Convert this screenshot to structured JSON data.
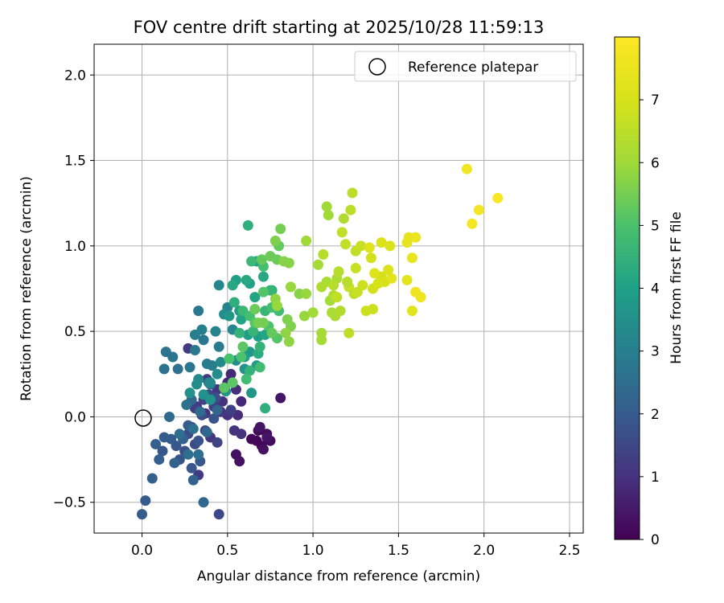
{
  "chart_data": {
    "type": "scatter",
    "title": "FOV centre drift starting at 2025/10/28 11:59:13",
    "xlabel": "Angular distance from reference (arcmin)",
    "ylabel": "Rotation from reference (arcmin)",
    "xlim": [
      -0.28,
      2.58
    ],
    "ylim": [
      -0.68,
      2.18
    ],
    "xticks": [
      0.0,
      0.5,
      1.0,
      1.5,
      2.0,
      2.5
    ],
    "xtick_labels": [
      "0.0",
      "0.5",
      "1.0",
      "1.5",
      "2.0",
      "2.5"
    ],
    "yticks": [
      -0.5,
      0.0,
      0.5,
      1.0,
      1.5,
      2.0
    ],
    "ytick_labels": [
      "−0.5",
      "0.0",
      "0.5",
      "1.0",
      "1.5",
      "2.0"
    ],
    "grid": true,
    "legend": {
      "placement": "top-right",
      "entries": [
        {
          "label": "Reference platepar",
          "marker": "open-circle"
        }
      ]
    },
    "reference_point": {
      "x": 0.0,
      "y": 0.0
    },
    "colorbar": {
      "label": "Hours from first FF file",
      "colormap": "viridis",
      "range": [
        0,
        8
      ],
      "ticks": [
        0,
        1,
        2,
        3,
        4,
        5,
        6,
        7
      ],
      "tick_labels": [
        "0",
        "1",
        "2",
        "3",
        "4",
        "5",
        "6",
        "7"
      ]
    },
    "points": [
      [
        0.64,
        -0.13,
        0.1
      ],
      [
        0.67,
        -0.14,
        0.1
      ],
      [
        0.7,
        -0.17,
        0.1
      ],
      [
        0.68,
        -0.08,
        0.2
      ],
      [
        0.73,
        -0.1,
        0.2
      ],
      [
        0.75,
        -0.14,
        0.2
      ],
      [
        0.55,
        -0.22,
        0.3
      ],
      [
        0.57,
        -0.26,
        0.3
      ],
      [
        0.71,
        -0.19,
        0.3
      ],
      [
        0.69,
        -0.06,
        0.4
      ],
      [
        0.73,
        -0.12,
        0.4
      ],
      [
        0.81,
        0.11,
        0.4
      ],
      [
        0.5,
        0.2,
        0.8
      ],
      [
        0.52,
        0.25,
        0.8
      ],
      [
        0.58,
        0.09,
        0.8
      ],
      [
        0.55,
        0.16,
        0.9
      ],
      [
        0.56,
        0.01,
        0.9
      ],
      [
        0.47,
        0.09,
        1.0
      ],
      [
        0.37,
        0.02,
        1.0
      ],
      [
        0.54,
        -0.08,
        1.0
      ],
      [
        0.5,
        0.01,
        1.0
      ],
      [
        0.58,
        -0.1,
        1.0
      ],
      [
        0.44,
        0.16,
        1.1
      ],
      [
        0.32,
        0.06,
        1.1
      ],
      [
        0.4,
        -0.12,
        1.1
      ],
      [
        0.46,
        0.03,
        1.1
      ],
      [
        0.27,
        0.4,
        1.2
      ],
      [
        0.33,
        -0.34,
        1.2
      ],
      [
        0.38,
        0.22,
        1.2
      ],
      [
        0.31,
        0.05,
        1.3
      ],
      [
        0.42,
        0.06,
        1.3
      ],
      [
        0.52,
        0.04,
        1.3
      ],
      [
        0.36,
        0.1,
        1.4
      ],
      [
        0.29,
        -0.06,
        1.4
      ],
      [
        0.44,
        -0.15,
        1.4
      ],
      [
        0.37,
        -0.08,
        1.5
      ],
      [
        0.45,
        -0.57,
        1.5
      ],
      [
        0.39,
        0.13,
        1.5
      ],
      [
        0.27,
        -0.1,
        1.6
      ],
      [
        0.31,
        -0.16,
        1.6
      ],
      [
        0.35,
        0.01,
        1.6
      ],
      [
        0.43,
        0.11,
        1.7
      ],
      [
        0.48,
        0.17,
        1.7
      ],
      [
        0.25,
        -0.2,
        1.7
      ],
      [
        0.33,
        -0.14,
        1.8
      ],
      [
        0.42,
        -0.01,
        1.8
      ],
      [
        0.22,
        -0.25,
        1.8
      ],
      [
        0.29,
        -0.3,
        1.9
      ],
      [
        0.34,
        -0.26,
        1.9
      ],
      [
        0.2,
        -0.17,
        1.9
      ],
      [
        0.12,
        -0.2,
        1.9
      ],
      [
        0.27,
        -0.05,
        2.0
      ],
      [
        0.17,
        -0.13,
        2.0
      ],
      [
        0.0,
        -0.57,
        2.0
      ],
      [
        0.02,
        -0.49,
        2.0
      ],
      [
        0.13,
        -0.12,
        2.0
      ],
      [
        0.08,
        -0.16,
        2.1
      ],
      [
        0.1,
        -0.25,
        2.1
      ],
      [
        0.06,
        -0.36,
        2.1
      ],
      [
        0.19,
        -0.27,
        2.2
      ],
      [
        0.24,
        -0.13,
        2.2
      ],
      [
        0.3,
        -0.37,
        2.2
      ],
      [
        0.36,
        -0.5,
        2.3
      ],
      [
        0.44,
        0.04,
        2.3
      ],
      [
        0.38,
        -0.09,
        2.3
      ],
      [
        0.16,
        0.0,
        2.4
      ],
      [
        0.29,
        0.1,
        2.4
      ],
      [
        0.34,
        0.03,
        2.4
      ],
      [
        0.4,
        0.19,
        2.5
      ],
      [
        0.22,
        -0.1,
        2.5
      ],
      [
        0.27,
        -0.22,
        2.5
      ],
      [
        0.33,
        -0.22,
        2.5
      ],
      [
        0.13,
        0.28,
        2.6
      ],
      [
        0.21,
        0.28,
        2.6
      ],
      [
        0.26,
        0.07,
        2.6
      ],
      [
        0.3,
        -0.07,
        2.6
      ],
      [
        0.14,
        0.38,
        2.7
      ],
      [
        0.18,
        0.35,
        2.7
      ],
      [
        0.28,
        0.29,
        2.7
      ],
      [
        0.31,
        0.39,
        2.8
      ],
      [
        0.36,
        0.45,
        2.8
      ],
      [
        0.33,
        0.62,
        2.8
      ],
      [
        0.38,
        0.31,
        2.9
      ],
      [
        0.45,
        0.41,
        2.9
      ],
      [
        0.39,
        0.2,
        2.9
      ],
      [
        0.35,
        0.51,
        3.0
      ],
      [
        0.41,
        0.3,
        3.0
      ],
      [
        0.31,
        0.48,
        3.0
      ],
      [
        0.43,
        0.5,
        3.1
      ],
      [
        0.5,
        0.64,
        3.1
      ],
      [
        0.53,
        0.51,
        3.2
      ],
      [
        0.45,
        0.77,
        3.2
      ],
      [
        0.4,
        0.2,
        3.3
      ],
      [
        0.46,
        0.32,
        3.3
      ],
      [
        0.33,
        0.22,
        3.3
      ],
      [
        0.32,
        0.19,
        3.4
      ],
      [
        0.44,
        0.25,
        3.4
      ],
      [
        0.48,
        0.6,
        3.4
      ],
      [
        0.55,
        0.33,
        3.5
      ],
      [
        0.49,
        0.15,
        3.5
      ],
      [
        0.28,
        0.14,
        3.5
      ],
      [
        0.36,
        0.13,
        3.6
      ],
      [
        0.4,
        0.1,
        3.6
      ],
      [
        0.6,
        0.28,
        3.6
      ],
      [
        0.64,
        0.14,
        3.7
      ],
      [
        0.51,
        0.59,
        3.7
      ],
      [
        0.63,
        0.38,
        3.7
      ],
      [
        0.57,
        0.62,
        3.8
      ],
      [
        0.67,
        0.3,
        3.8
      ],
      [
        0.62,
        0.48,
        3.9
      ],
      [
        0.6,
        0.35,
        3.9
      ],
      [
        0.68,
        0.47,
        3.9
      ],
      [
        0.55,
        0.8,
        4.0
      ],
      [
        0.63,
        0.78,
        4.0
      ],
      [
        0.67,
        0.91,
        4.0
      ],
      [
        0.66,
        0.7,
        4.1
      ],
      [
        0.72,
        0.48,
        4.1
      ],
      [
        0.58,
        0.57,
        4.1
      ],
      [
        0.53,
        0.77,
        4.2
      ],
      [
        0.61,
        0.8,
        4.2
      ],
      [
        0.71,
        0.82,
        4.2
      ],
      [
        0.76,
        0.74,
        4.3
      ],
      [
        0.68,
        0.37,
        4.3
      ],
      [
        0.72,
        0.05,
        4.4
      ],
      [
        0.62,
        1.12,
        4.4
      ],
      [
        0.54,
        0.67,
        4.4
      ],
      [
        0.63,
        0.27,
        4.5
      ],
      [
        0.57,
        0.49,
        4.5
      ],
      [
        0.69,
        0.41,
        4.5
      ],
      [
        0.65,
        0.5,
        4.6
      ],
      [
        0.72,
        0.62,
        4.6
      ],
      [
        0.75,
        0.74,
        4.6
      ],
      [
        0.64,
        0.91,
        4.7
      ],
      [
        0.59,
        0.62,
        4.7
      ],
      [
        0.69,
        0.29,
        4.8
      ],
      [
        0.61,
        0.22,
        4.8
      ],
      [
        0.8,
        0.62,
        4.8
      ],
      [
        0.71,
        0.88,
        4.9
      ],
      [
        0.63,
        0.59,
        4.9
      ],
      [
        0.76,
        0.64,
        4.9
      ],
      [
        0.58,
        0.35,
        5.0
      ],
      [
        0.51,
        0.34,
        5.0
      ],
      [
        0.74,
        0.53,
        5.0
      ],
      [
        0.66,
        0.55,
        5.1
      ],
      [
        0.71,
        0.73,
        5.1
      ],
      [
        0.79,
        0.46,
        5.1
      ],
      [
        0.59,
        0.41,
        5.2
      ],
      [
        0.48,
        0.17,
        5.2
      ],
      [
        0.53,
        0.2,
        5.2
      ],
      [
        0.7,
        0.92,
        5.3
      ],
      [
        0.76,
        0.49,
        5.3
      ],
      [
        0.8,
        1.0,
        5.3
      ],
      [
        0.66,
        0.63,
        5.4
      ],
      [
        0.79,
        0.92,
        5.4
      ],
      [
        0.75,
        0.94,
        5.4
      ],
      [
        0.68,
        0.55,
        5.5
      ],
      [
        0.71,
        0.55,
        5.5
      ],
      [
        0.81,
        1.1,
        5.5
      ],
      [
        0.85,
        0.57,
        5.6
      ],
      [
        0.87,
        0.53,
        5.6
      ],
      [
        0.78,
        1.03,
        5.6
      ],
      [
        0.86,
        0.9,
        5.7
      ],
      [
        0.83,
        0.91,
        5.7
      ],
      [
        0.92,
        0.72,
        5.7
      ],
      [
        0.78,
        0.69,
        5.8
      ],
      [
        0.84,
        0.49,
        5.8
      ],
      [
        0.86,
        0.44,
        5.8
      ],
      [
        0.79,
        0.65,
        5.9
      ],
      [
        0.87,
        0.76,
        5.9
      ],
      [
        0.95,
        0.59,
        5.9
      ],
      [
        1.08,
        1.23,
        6.0
      ],
      [
        1.09,
        1.18,
        6.0
      ],
      [
        1.0,
        0.61,
        6.0
      ],
      [
        1.05,
        0.49,
        6.1
      ],
      [
        1.03,
        0.89,
        6.1
      ],
      [
        1.1,
        0.68,
        6.1
      ],
      [
        1.08,
        0.79,
        6.2
      ],
      [
        1.14,
        0.81,
        6.2
      ],
      [
        1.13,
        0.59,
        6.2
      ],
      [
        1.05,
        0.76,
        6.3
      ],
      [
        1.12,
        0.71,
        6.3
      ],
      [
        1.18,
        1.16,
        6.3
      ],
      [
        1.06,
        0.95,
        6.4
      ],
      [
        1.12,
        0.77,
        6.4
      ],
      [
        1.15,
        0.85,
        6.4
      ],
      [
        1.21,
        0.49,
        6.5
      ],
      [
        1.22,
        1.21,
        6.5
      ],
      [
        1.23,
        1.31,
        6.5
      ],
      [
        1.17,
        1.08,
        6.6
      ],
      [
        1.25,
        0.97,
        6.6
      ],
      [
        1.14,
        0.7,
        6.6
      ],
      [
        1.21,
        0.76,
        6.7
      ],
      [
        1.28,
        1.0,
        6.7
      ],
      [
        1.25,
        0.87,
        6.7
      ],
      [
        1.31,
        0.62,
        6.8
      ],
      [
        1.35,
        0.63,
        6.8
      ],
      [
        1.29,
        0.77,
        6.8
      ],
      [
        1.35,
        0.75,
        6.9
      ],
      [
        1.4,
        0.82,
        6.9
      ],
      [
        1.34,
        0.93,
        6.9
      ],
      [
        0.96,
        0.72,
        5.9
      ],
      [
        0.96,
        1.03,
        6.0
      ],
      [
        1.05,
        0.45,
        6.1
      ],
      [
        1.11,
        0.61,
        6.2
      ],
      [
        1.16,
        0.62,
        6.3
      ],
      [
        1.2,
        0.79,
        6.4
      ],
      [
        1.24,
        0.72,
        6.5
      ],
      [
        1.19,
        1.01,
        6.6
      ],
      [
        1.26,
        0.73,
        6.7
      ],
      [
        1.38,
        0.78,
        7.0
      ],
      [
        1.42,
        0.79,
        7.0
      ],
      [
        1.44,
        0.86,
        7.1
      ],
      [
        1.4,
        1.02,
        7.1
      ],
      [
        1.45,
        1.0,
        7.1
      ],
      [
        1.36,
        0.84,
        7.2
      ],
      [
        1.33,
        0.99,
        7.2
      ],
      [
        1.46,
        0.81,
        7.3
      ],
      [
        1.55,
        0.8,
        7.3
      ],
      [
        1.58,
        0.62,
        7.3
      ],
      [
        1.55,
        1.02,
        7.4
      ],
      [
        1.56,
        1.05,
        7.4
      ],
      [
        1.58,
        0.93,
        7.5
      ],
      [
        1.6,
        1.05,
        7.5
      ],
      [
        1.6,
        0.73,
        7.6
      ],
      [
        1.63,
        0.7,
        7.6
      ],
      [
        1.9,
        1.45,
        7.7
      ],
      [
        1.93,
        1.13,
        7.8
      ],
      [
        1.97,
        1.21,
        7.8
      ],
      [
        2.08,
        1.28,
        7.9
      ]
    ]
  }
}
